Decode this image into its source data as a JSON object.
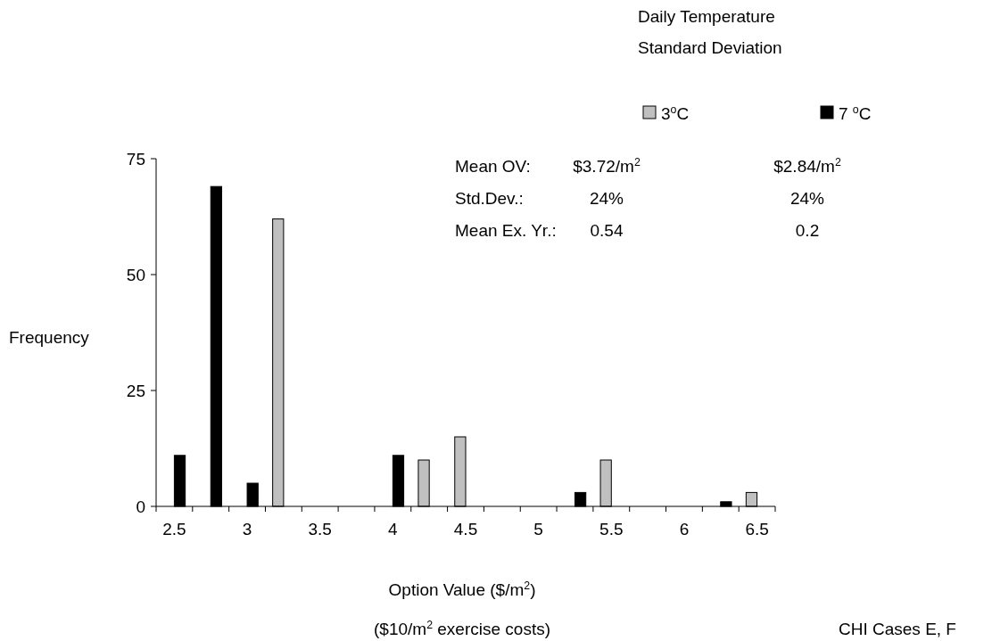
{
  "chart_data": {
    "type": "bar",
    "legend_title": "Daily Temperature\nStandard Deviation",
    "xlabel": "Option Value ($/m$^{2}$)\n($10/m$^{2}$ exercise costs)",
    "ylabel": "Frequency",
    "categories": [
      "2.5",
      null,
      "3",
      null,
      "3.5",
      null,
      "4",
      null,
      "4.5",
      null,
      "5",
      null,
      "5.5",
      null,
      "6",
      null,
      "6.5"
    ],
    "series": [
      {
        "name": "3$^{o}$C",
        "color": "#c0c0c0",
        "values": [
          0,
          0,
          0,
          62,
          0,
          0,
          0,
          10,
          15,
          0,
          0,
          0,
          10,
          0,
          0,
          0,
          3
        ]
      },
      {
        "name": "7 $^{o}$C",
        "color": "#000000",
        "values": [
          11,
          69,
          5,
          0,
          0,
          0,
          11,
          0,
          0,
          0,
          0,
          3,
          0,
          0,
          0,
          1,
          0
        ]
      }
    ],
    "ylim": [
      0,
      75
    ],
    "yticks": [
      0,
      25,
      50,
      75
    ],
    "grid": false,
    "legend": "top right",
    "annotations": [
      "Mean OV:",
      "$3.72/m$^{2}$",
      "$2.84/m$^{2}$",
      "Std.Dev.:",
      "24%",
      "24%",
      "Mean Ex. Yr.:",
      "0.54",
      "0.2",
      "CHI Cases E, F"
    ]
  }
}
